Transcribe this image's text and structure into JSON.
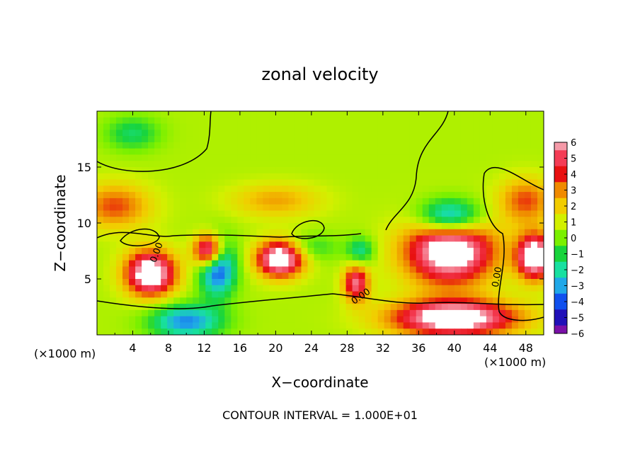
{
  "chart_data": {
    "type": "heatmap",
    "title": "zonal velocity",
    "xlabel": "X−coordinate",
    "ylabel": "Z−coordinate",
    "x_unit": "(×1000 m)",
    "y_unit": "(×1000 m)",
    "footer": "CONTOUR INTERVAL = 1.000E+01",
    "contour_label": "0.00",
    "xlim": [
      0,
      50
    ],
    "ylim": [
      0,
      20
    ],
    "x_ticks": [
      "4",
      "8",
      "12",
      "16",
      "20",
      "24",
      "28",
      "32",
      "36",
      "40",
      "44",
      "48"
    ],
    "y_ticks": [
      "5",
      "10",
      "15"
    ],
    "colorbar": {
      "vmin": -6,
      "vmax": 6,
      "labels": [
        "6",
        "5",
        "4",
        "3",
        "2",
        "1",
        "0",
        "−1",
        "−2",
        "−3",
        "−4",
        "−5",
        "−6"
      ],
      "colors": [
        "#f59aa8",
        "#f43c55",
        "#e81010",
        "#f08a00",
        "#f2cc00",
        "#d2f000",
        "#7af000",
        "#18d43c",
        "#18e0a0",
        "#20a8e8",
        "#1050ee",
        "#2010b8",
        "#7a10a8"
      ]
    },
    "features": [
      {
        "x": 12.5,
        "z": 7.5,
        "u": 7,
        "rx": 1.6,
        "rz": 1.4
      },
      {
        "x": 20.5,
        "z": 6.8,
        "u": 7,
        "rx": 2.6,
        "rz": 1.6
      },
      {
        "x": 6,
        "z": 5.5,
        "u": 7,
        "rx": 2.8,
        "rz": 2
      },
      {
        "x": 29,
        "z": 4.6,
        "u": 5,
        "rx": 1.4,
        "rz": 1.6
      },
      {
        "x": 39.5,
        "z": 7.5,
        "u": 7,
        "rx": 5,
        "rz": 3
      },
      {
        "x": 49,
        "z": 7,
        "u": 7,
        "rx": 2,
        "rz": 2
      },
      {
        "x": 40,
        "z": 1.5,
        "u": 7,
        "rx": 7,
        "rz": 1.6
      },
      {
        "x": 10,
        "z": 1.2,
        "u": -4,
        "rx": 4,
        "rz": 1.5
      },
      {
        "x": 13.5,
        "z": 6,
        "u": -5,
        "rx": 2,
        "rz": 2.5
      },
      {
        "x": 39.5,
        "z": 10.5,
        "u": -5,
        "rx": 3.5,
        "rz": 1.6
      },
      {
        "x": 2,
        "z": 11.5,
        "u": 3,
        "rx": 4,
        "rz": 2
      },
      {
        "x": 48,
        "z": 12,
        "u": 3,
        "rx": 3,
        "rz": 2
      },
      {
        "x": 20,
        "z": 12,
        "u": 2,
        "rx": 5,
        "rz": 1.5
      },
      {
        "x": 4,
        "z": 18,
        "u": -2,
        "rx": 3,
        "rz": 1.5
      },
      {
        "x": 24,
        "z": 7.8,
        "u": -1.5,
        "rx": 3,
        "rz": 1.2
      },
      {
        "x": 29.5,
        "z": 7.5,
        "u": -2.5,
        "rx": 1.5,
        "rz": 1.2
      }
    ]
  }
}
